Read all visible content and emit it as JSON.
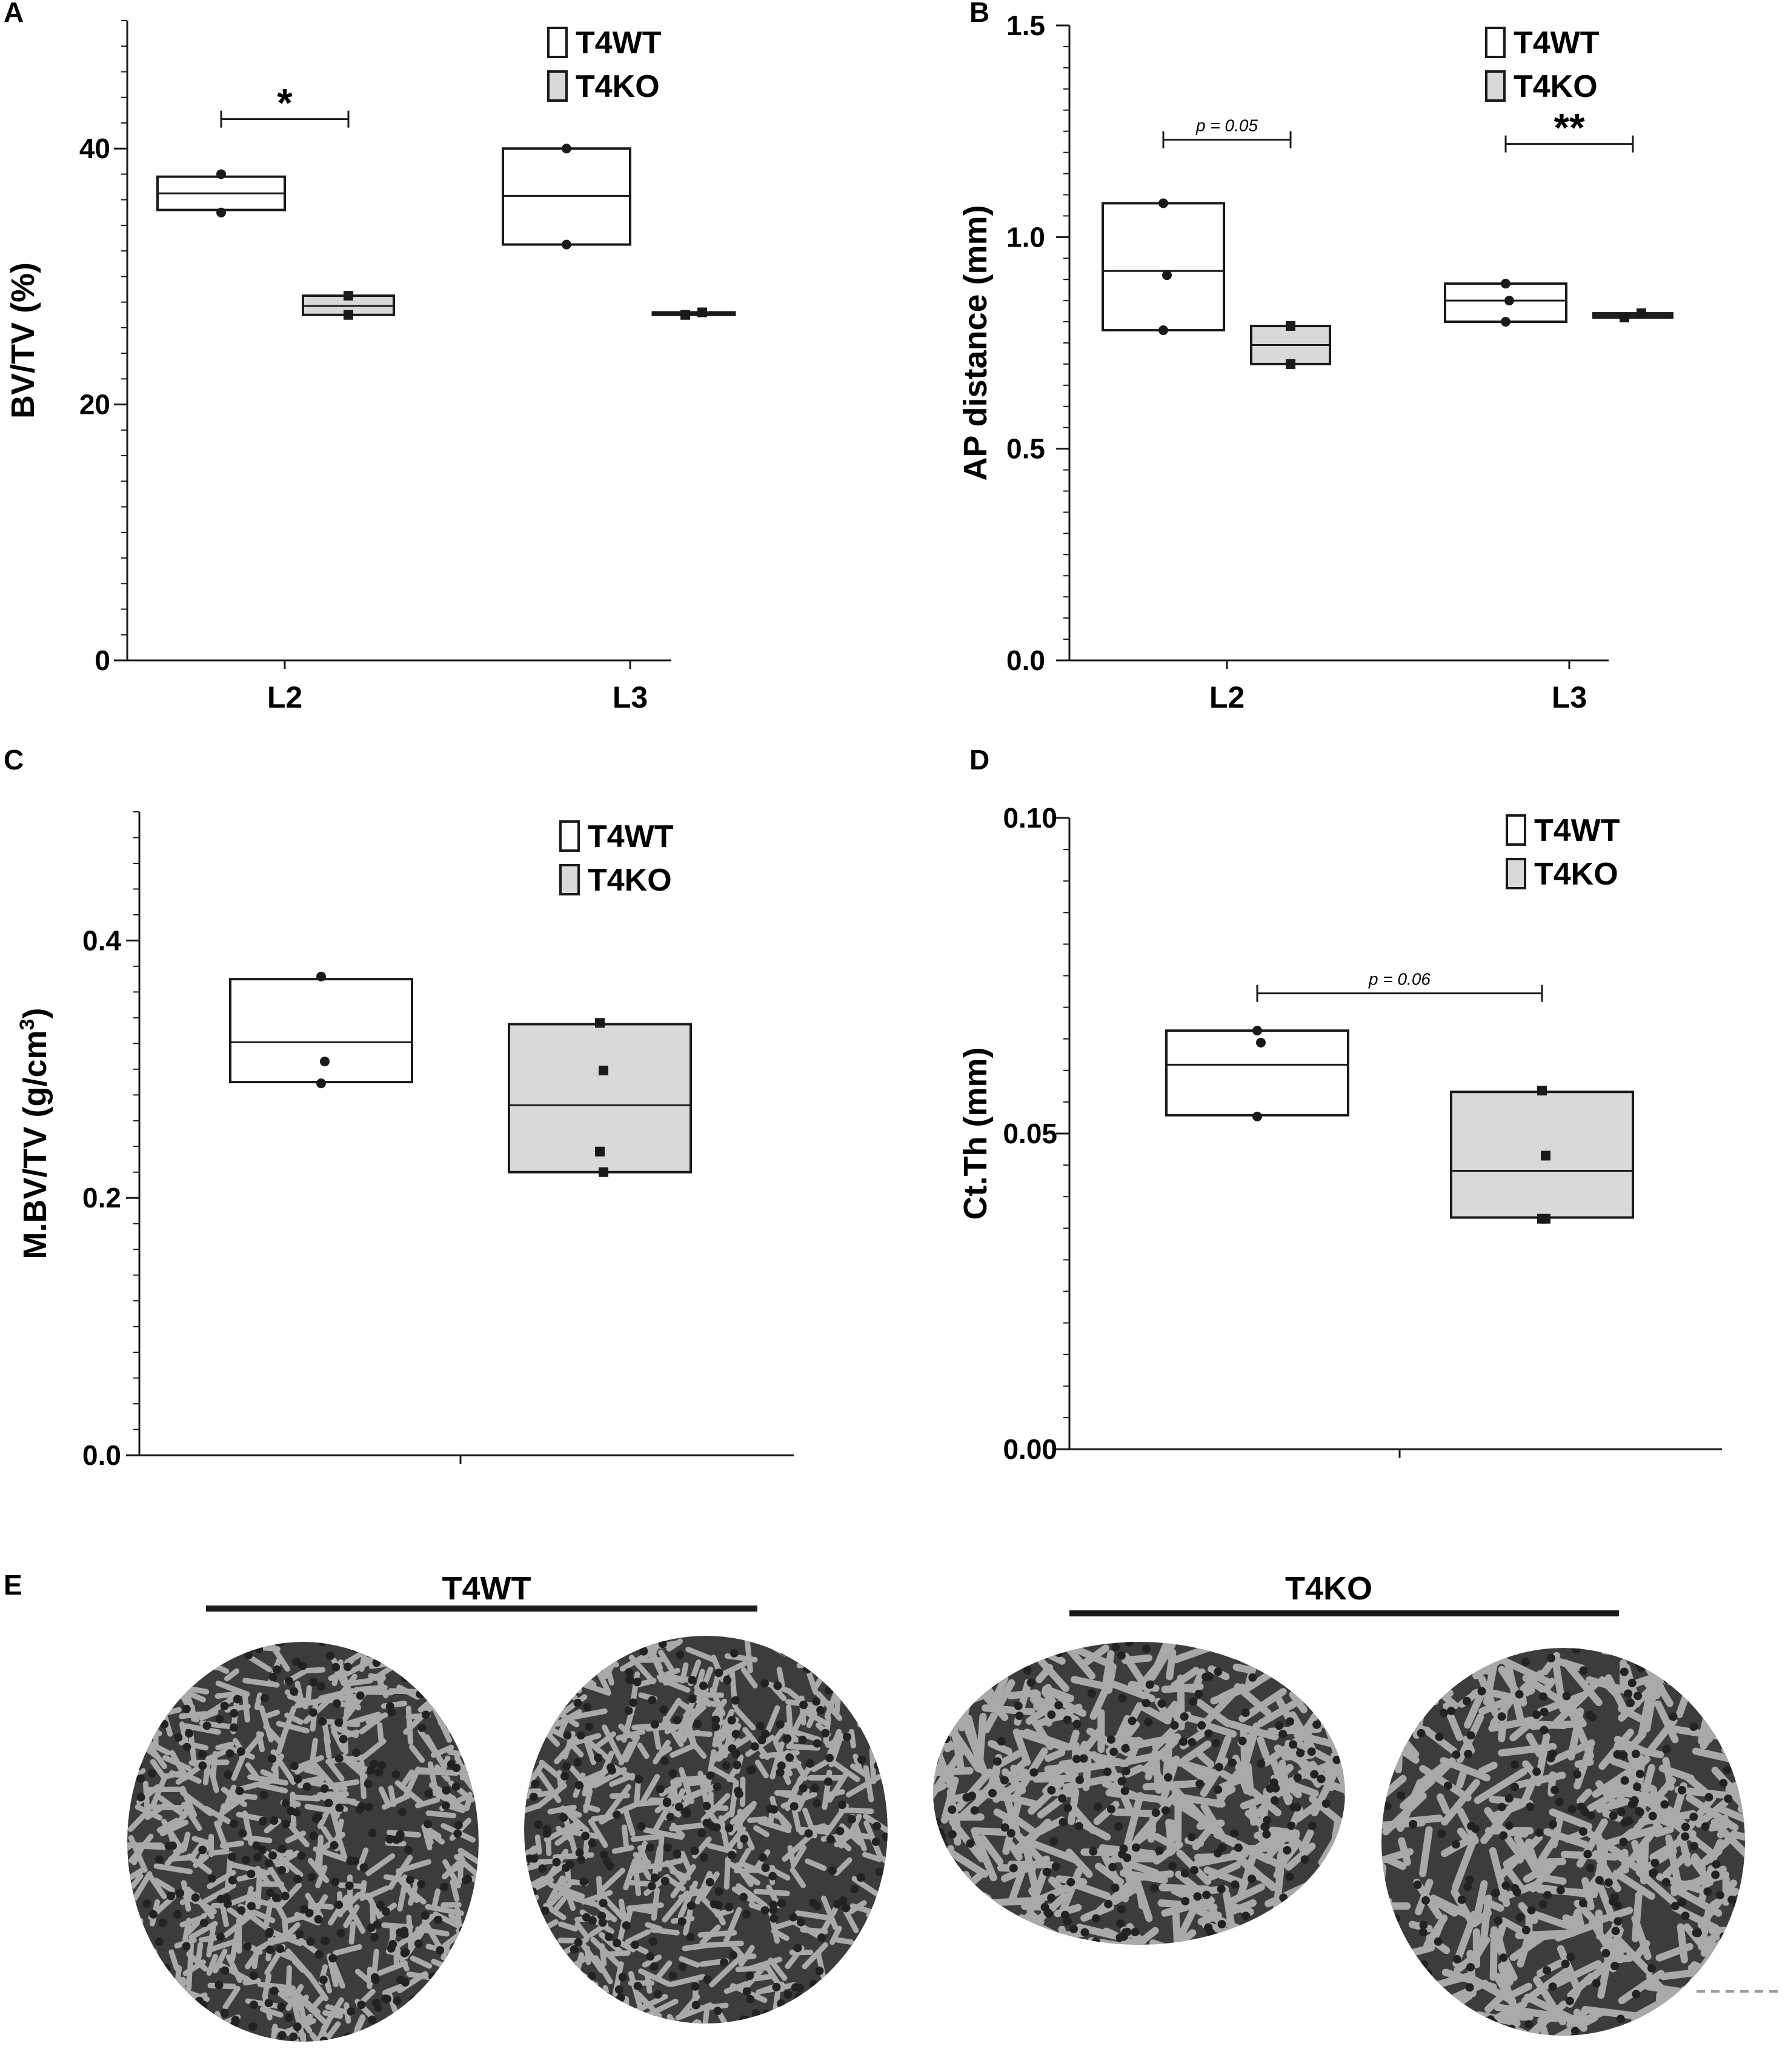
{
  "chart_data": [
    {
      "panel": "A",
      "type": "box",
      "ylabel": "BV/TV (%)",
      "ylim": [
        0,
        50
      ],
      "yticks": [
        "0",
        "20",
        "40"
      ],
      "categories": [
        "L2",
        "L3"
      ],
      "legend": [
        "T4WT",
        "T4KO"
      ],
      "legend_position": "top-right",
      "series": [
        {
          "name": "T4WT",
          "fill": "#ffffff",
          "marker": "circle",
          "boxes": [
            {
              "category": "L2",
              "min": 35.2,
              "median": 36.5,
              "max": 37.8,
              "points": [
                38.0,
                35.0
              ]
            },
            {
              "category": "L3",
              "min": 32.5,
              "median": 36.3,
              "max": 40.0,
              "points": [
                40.0,
                32.5
              ]
            }
          ]
        },
        {
          "name": "T4KO",
          "fill": "#d9d9d9",
          "marker": "square",
          "boxes": [
            {
              "category": "L2",
              "min": 27.0,
              "median": 27.7,
              "max": 28.5,
              "points": [
                28.5,
                27.0
              ]
            },
            {
              "category": "L3",
              "min": 27.0,
              "median": 27.1,
              "max": 27.2,
              "points": [
                27.0,
                27.2
              ]
            }
          ]
        }
      ],
      "annotations": [
        {
          "category": "L2",
          "text": "*",
          "y": 42.3
        }
      ]
    },
    {
      "panel": "B",
      "type": "box",
      "ylabel": "AP distance (mm)",
      "ylim": [
        0,
        1.5
      ],
      "yticks": [
        "0.0",
        "0.5",
        "1.0",
        "1.5"
      ],
      "categories": [
        "L2",
        "L3"
      ],
      "legend": [
        "T4WT",
        "T4KO"
      ],
      "legend_position": "top-right",
      "series": [
        {
          "name": "T4WT",
          "fill": "#ffffff",
          "marker": "circle",
          "boxes": [
            {
              "category": "L2",
              "min": 0.78,
              "median": 0.92,
              "max": 1.08,
              "points": [
                1.08,
                0.91,
                0.78
              ]
            },
            {
              "category": "L3",
              "min": 0.8,
              "median": 0.85,
              "max": 0.89,
              "points": [
                0.89,
                0.85,
                0.8
              ]
            }
          ]
        },
        {
          "name": "T4KO",
          "fill": "#d9d9d9",
          "marker": "square",
          "boxes": [
            {
              "category": "L2",
              "min": 0.7,
              "median": 0.745,
              "max": 0.79,
              "points": [
                0.79,
                0.7
              ]
            },
            {
              "category": "L3",
              "min": 0.81,
              "median": 0.815,
              "max": 0.82,
              "points": [
                0.81,
                0.82
              ]
            }
          ]
        }
      ],
      "annotations": [
        {
          "category": "L2",
          "text": "p = 0.05",
          "y": 1.23
        },
        {
          "category": "L3",
          "text": "**",
          "y": 1.22
        }
      ]
    },
    {
      "panel": "C",
      "type": "box",
      "ylabel_main": "M.BV/TV (g/cm",
      "ylabel_sup": "3",
      "ylabel_end": ")",
      "ylim": [
        0,
        0.5
      ],
      "yticks": [
        "0.0",
        "0.2",
        "0.4"
      ],
      "categories": [
        ""
      ],
      "legend": [
        "T4WT",
        "T4KO"
      ],
      "legend_position": "top-right",
      "series": [
        {
          "name": "T4WT",
          "fill": "#ffffff",
          "marker": "circle",
          "boxes": [
            {
              "min": 0.29,
              "median": 0.321,
              "max": 0.37,
              "points": [
                0.372,
                0.306,
                0.289
              ]
            }
          ]
        },
        {
          "name": "T4KO",
          "fill": "#d9d9d9",
          "marker": "square",
          "boxes": [
            {
              "min": 0.22,
              "median": 0.272,
              "max": 0.335,
              "points": [
                0.336,
                0.299,
                0.236,
                0.22
              ]
            }
          ]
        }
      ]
    },
    {
      "panel": "D",
      "type": "box",
      "ylabel": "Ct.Th (mm)",
      "ylim": [
        0,
        0.1
      ],
      "yticks": [
        "0.00",
        "0.05",
        "0.10"
      ],
      "categories": [
        ""
      ],
      "legend": [
        "T4WT",
        "T4KO"
      ],
      "legend_position": "top-right",
      "series": [
        {
          "name": "T4WT",
          "fill": "#ffffff",
          "marker": "circle",
          "boxes": [
            {
              "min": 0.0529,
              "median": 0.0609,
              "max": 0.0663,
              "points": [
                0.0663,
                0.0644,
                0.0527
              ]
            }
          ]
        },
        {
          "name": "T4KO",
          "fill": "#d9d9d9",
          "marker": "square",
          "boxes": [
            {
              "min": 0.0367,
              "median": 0.0441,
              "max": 0.0566,
              "points": [
                0.0568,
                0.0465,
                0.0365,
                0.0365
              ]
            }
          ]
        }
      ],
      "annotations": [
        {
          "text": "p = 0.06",
          "y": 0.0722
        }
      ]
    }
  ],
  "panel_e": {
    "letter": "E",
    "groups": [
      "T4WT",
      "T4KO"
    ]
  },
  "colors": {
    "ink": "#1a1a1a",
    "ko_fill": "#d9d9d9",
    "scan_dark": "#3c3c3c",
    "scan_light": "#a9a9a9"
  }
}
